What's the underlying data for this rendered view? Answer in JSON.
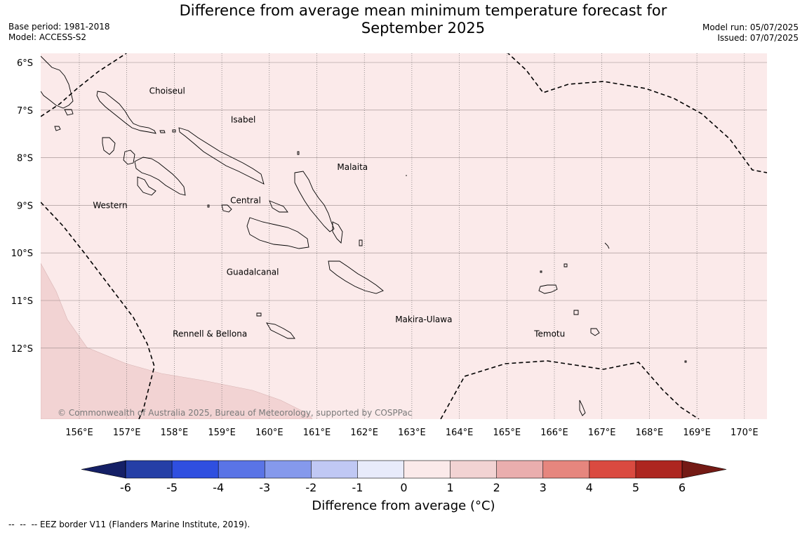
{
  "title": {
    "line1": "Difference from average mean minimum temperature forecast for",
    "line2": "September 2025"
  },
  "meta_left": {
    "base_period": "Base period: 1981-2018",
    "model": "Model: ACCESS-S2"
  },
  "meta_right": {
    "model_run": "Model run: 05/07/2025",
    "issued": "Issued: 07/07/2025"
  },
  "map": {
    "lat_labels": [
      "6°S",
      "7°S",
      "8°S",
      "9°S",
      "10°S",
      "11°S",
      "12°S"
    ],
    "lon_labels": [
      "156°E",
      "157°E",
      "158°E",
      "159°E",
      "160°E",
      "161°E",
      "162°E",
      "163°E",
      "164°E",
      "165°E",
      "166°E",
      "167°E",
      "168°E",
      "169°E",
      "170°E"
    ],
    "regions": [
      {
        "name": "Choiseul",
        "lon": 157.85,
        "lat": -6.6
      },
      {
        "name": "Isabel",
        "lon": 159.45,
        "lat": -7.2
      },
      {
        "name": "Malaita",
        "lon": 161.75,
        "lat": -8.2
      },
      {
        "name": "Western",
        "lon": 156.65,
        "lat": -9.0
      },
      {
        "name": "Central",
        "lon": 159.5,
        "lat": -8.9
      },
      {
        "name": "Guadalcanal",
        "lon": 159.65,
        "lat": -10.4
      },
      {
        "name": "Makira-Ulawa",
        "lon": 163.25,
        "lat": -11.4
      },
      {
        "name": "Temotu",
        "lon": 165.9,
        "lat": -11.7
      },
      {
        "name": "Rennell & Bellona",
        "lon": 158.75,
        "lat": -11.7
      }
    ],
    "copyright": "© Commonwealth of Australia 2025, Bureau of Meteorology, supported by COSPPac",
    "background_color": "#fbeaea",
    "anomaly_patch_color": "#f2d3d3"
  },
  "colorbar": {
    "ticks": [
      "-6",
      "-5",
      "-4",
      "-3",
      "-2",
      "-1",
      "0",
      "1",
      "2",
      "3",
      "4",
      "5",
      "6"
    ],
    "colors": [
      "#253fa6",
      "#2f4fe0",
      "#5a74e6",
      "#8599ec",
      "#c0c8f4",
      "#e8ebfb",
      "#fbeaea",
      "#f2d3d3",
      "#eaaeae",
      "#e6867e",
      "#da4a40",
      "#ad2620"
    ],
    "under_color": "#152066",
    "over_color": "#741a15",
    "label": "Difference from average (°C)"
  },
  "footnote": "--  --  -- EEZ border V11 (Flanders Marine Institute, 2019)."
}
